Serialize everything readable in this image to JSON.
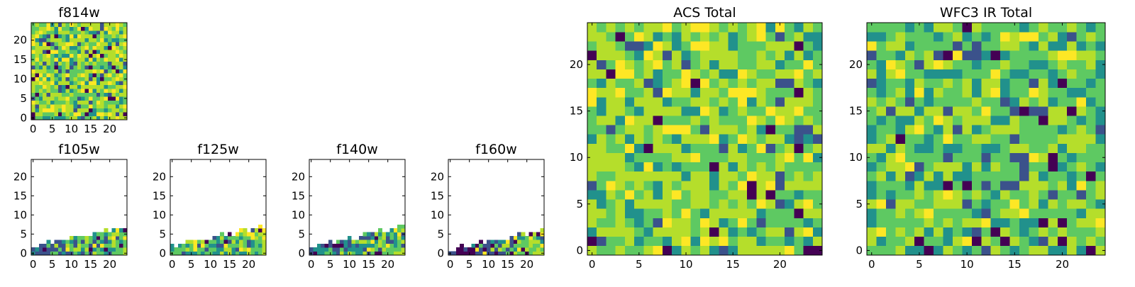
{
  "palette": [
    "#440154",
    "#3b528b",
    "#21918c",
    "#5ec962",
    "#b5de2b",
    "#fde725"
  ],
  "chart_data": [
    {
      "id": "f814w",
      "type": "heatmap",
      "title": "f814w",
      "xticks": [
        "0",
        "5",
        "10",
        "15",
        "20"
      ],
      "yticks": [
        "0",
        "5",
        "10",
        "15",
        "20"
      ],
      "xlim": [
        0,
        25
      ],
      "ylim": [
        0,
        25
      ],
      "grid": "25x25 pixel image, full coverage, mostly green-yellow values"
    },
    {
      "id": "f105w",
      "type": "heatmap",
      "title": "f105w",
      "xticks": [
        "0",
        "5",
        "10",
        "15",
        "20"
      ],
      "yticks": [
        "0",
        "5",
        "10",
        "15",
        "20"
      ],
      "xlim": [
        0,
        25
      ],
      "ylim": [
        0,
        25
      ],
      "grid": "valid pixels only in a wedge at the bottom, rising to about y=7 at the right edge; blue-teal on the left, green-yellow on the right; rest blank"
    },
    {
      "id": "f125w",
      "type": "heatmap",
      "title": "f125w",
      "xticks": [
        "0",
        "5",
        "10",
        "15",
        "20"
      ],
      "yticks": [
        "0",
        "5",
        "10",
        "15",
        "20"
      ],
      "xlim": [
        0,
        25
      ],
      "ylim": [
        0,
        25
      ],
      "grid": "valid pixels only in a bottom wedge, rising to about y=7; mostly green with a yellow patch near x=19; rest blank"
    },
    {
      "id": "f140w",
      "type": "heatmap",
      "title": "f140w",
      "xticks": [
        "0",
        "5",
        "10",
        "15",
        "20"
      ],
      "yticks": [
        "0",
        "5",
        "10",
        "15",
        "20"
      ],
      "xlim": [
        0,
        25
      ],
      "ylim": [
        0,
        25
      ],
      "grid": "valid pixels only in a bottom wedge, rising to about y=7; teal-blue on the left, green-yellow on the right; rest blank"
    },
    {
      "id": "f160w",
      "type": "heatmap",
      "title": "f160w",
      "xticks": [
        "0",
        "5",
        "10",
        "15",
        "20"
      ],
      "yticks": [
        "0",
        "5",
        "10",
        "15",
        "20"
      ],
      "xlim": [
        0,
        25
      ],
      "ylim": [
        0,
        25
      ],
      "grid": "valid pixels only in a bottom wedge, rising to about y=6; dark purple-blue on the left, green-yellow on the right; rest blank"
    },
    {
      "id": "acs_total",
      "type": "heatmap",
      "title": "ACS Total",
      "xticks": [
        "0",
        "5",
        "10",
        "15",
        "20"
      ],
      "yticks": [
        "0",
        "5",
        "10",
        "15",
        "20"
      ],
      "xlim": [
        0,
        25
      ],
      "ylim": [
        0,
        25
      ],
      "grid": "25x25 pixel image, full coverage, mostly green-yellow with a few dark purple pixels"
    },
    {
      "id": "wfc3_ir_total",
      "type": "heatmap",
      "title": "WFC3 IR Total",
      "xticks": [
        "0",
        "5",
        "10",
        "15",
        "20"
      ],
      "yticks": [
        "0",
        "5",
        "10",
        "15",
        "20"
      ],
      "xlim": [
        0,
        25
      ],
      "ylim": [
        0,
        25
      ],
      "grid": "25x25 pixel image, full coverage, mostly green with some yellow and dark purple pixels"
    }
  ]
}
